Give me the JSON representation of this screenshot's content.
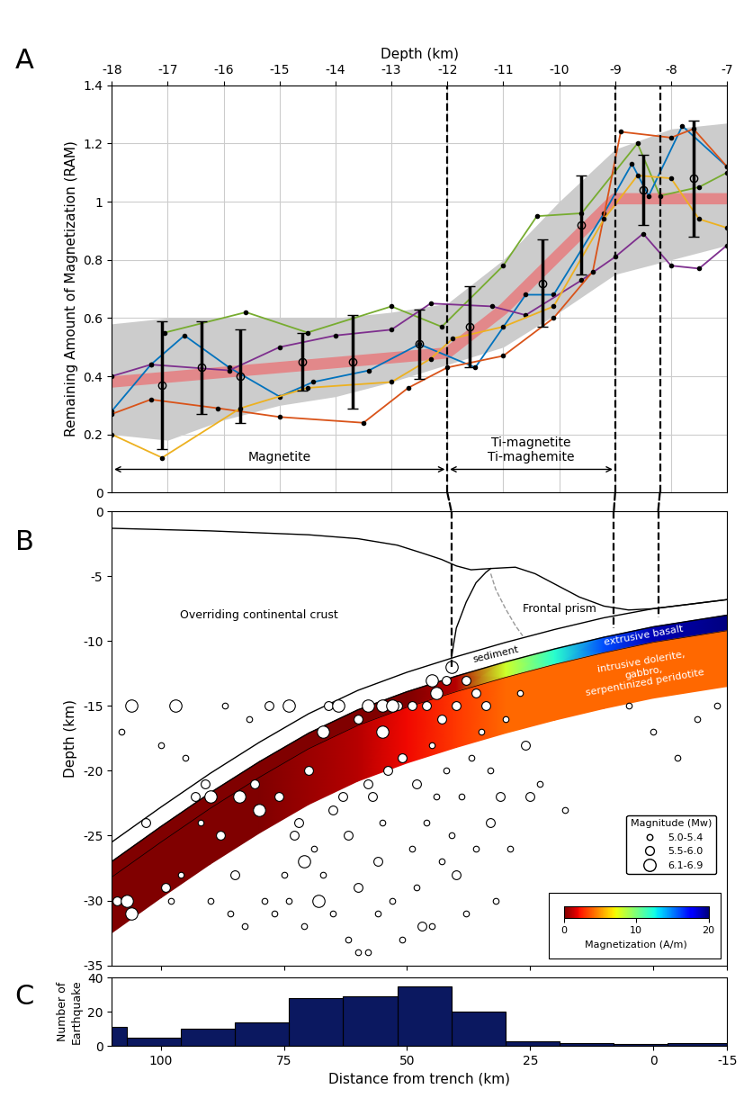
{
  "chart_data": [
    {
      "type": "line",
      "panel_label": "A",
      "xlabel": "Depth (km)",
      "ylabel": "Remaining Amount of Magnetization (RAM)",
      "xlim": [
        -18,
        -7
      ],
      "xticks": [
        -18,
        -17,
        -16,
        -15,
        -14,
        -13,
        -12,
        -11,
        -10,
        -9,
        -8,
        -7
      ],
      "ylim": [
        0,
        1.4
      ],
      "yticks": [
        0,
        0.2,
        0.4,
        0.6,
        0.8,
        1,
        1.2,
        1.4
      ],
      "grid": true,
      "series": [
        {
          "color": "#77ac30",
          "marker": "o",
          "x": [
            -17.05,
            -15.6,
            -14.5,
            -13.0,
            -12.1,
            -11.0,
            -10.4,
            -9.6,
            -8.6,
            -8.2,
            -7.5,
            -7.0
          ],
          "values": [
            0.55,
            0.62,
            0.55,
            0.64,
            0.57,
            0.78,
            0.95,
            0.96,
            1.2,
            1.02,
            1.05,
            1.1
          ]
        },
        {
          "color": "#0072bd",
          "marker": "o",
          "x": [
            -18,
            -17.3,
            -16.7,
            -15.9,
            -15.0,
            -14.4,
            -13.4,
            -12.5,
            -11.5,
            -10.6,
            -10.1,
            -9.2,
            -8.7,
            -8.4,
            -7.8,
            -7.0
          ],
          "values": [
            0.28,
            0.44,
            0.54,
            0.43,
            0.33,
            0.38,
            0.42,
            0.51,
            0.43,
            0.68,
            0.68,
            0.96,
            1.13,
            1.02,
            1.26,
            1.12
          ]
        },
        {
          "color": "#7e2f8e",
          "marker": "o",
          "x": [
            -18,
            -17.3,
            -15.9,
            -15.0,
            -14.0,
            -13.0,
            -12.3,
            -11.2,
            -10.6,
            -9.6,
            -9.0,
            -8.5,
            -8.0,
            -7.5,
            -7.0
          ],
          "values": [
            0.4,
            0.44,
            0.42,
            0.5,
            0.54,
            0.56,
            0.65,
            0.64,
            0.61,
            0.73,
            0.81,
            0.89,
            0.78,
            0.77,
            0.85
          ]
        },
        {
          "color": "#d95319",
          "marker": "o",
          "x": [
            -18,
            -17.3,
            -16.1,
            -15.0,
            -13.5,
            -12.7,
            -12.0,
            -11.0,
            -10.1,
            -9.4,
            -8.9,
            -8.0,
            -7.6,
            -7.0
          ],
          "values": [
            0.27,
            0.32,
            0.29,
            0.26,
            0.24,
            0.36,
            0.43,
            0.47,
            0.6,
            0.76,
            1.24,
            1.22,
            1.25,
            1.12
          ]
        },
        {
          "color": "#edb120",
          "marker": "o",
          "x": [
            -18,
            -17.1,
            -15.7,
            -14.5,
            -13.0,
            -12.3,
            -11.9,
            -11.0,
            -10.1,
            -9.2,
            -8.6,
            -8.0,
            -7.5,
            -7.0
          ],
          "values": [
            0.2,
            0.12,
            0.29,
            0.36,
            0.38,
            0.46,
            0.53,
            0.57,
            0.64,
            0.94,
            1.09,
            1.08,
            0.94,
            0.91
          ]
        }
      ],
      "trend": {
        "color": "#e8777a",
        "x": [
          -18,
          -12,
          -11,
          -10,
          -9,
          -7
        ],
        "values": [
          0.38,
          0.48,
          0.63,
          0.82,
          1.01,
          1.01
        ]
      },
      "band": {
        "color": "#cccccc",
        "x": [
          -18,
          -17,
          -16,
          -15,
          -14,
          -13,
          -12,
          -11,
          -10,
          -9,
          -8,
          -7
        ],
        "lower": [
          0.2,
          0.18,
          0.25,
          0.3,
          0.33,
          0.38,
          0.44,
          0.5,
          0.62,
          0.75,
          0.8,
          0.85
        ],
        "upper": [
          0.58,
          0.6,
          0.6,
          0.6,
          0.6,
          0.62,
          0.65,
          0.8,
          1.0,
          1.18,
          1.25,
          1.27
        ]
      },
      "means": {
        "x": [
          -17.1,
          -16.4,
          -15.7,
          -14.6,
          -13.7,
          -12.5,
          -11.6,
          -10.3,
          -9.6,
          -8.5,
          -7.6
        ],
        "values": [
          0.37,
          0.43,
          0.4,
          0.45,
          0.45,
          0.51,
          0.57,
          0.72,
          0.92,
          1.04,
          1.08
        ],
        "errors": [
          0.22,
          0.16,
          0.16,
          0.1,
          0.16,
          0.12,
          0.14,
          0.15,
          0.17,
          0.12,
          0.2
        ]
      },
      "phases": [
        {
          "text": "Magnetite",
          "from": -18,
          "to": -12,
          "y": 0.08
        },
        {
          "text": "Ti-magnetite\nTi-maghemite",
          "from": -12,
          "to": -9,
          "y": 0.08
        }
      ]
    },
    {
      "type": "scatter",
      "panel_label": "B",
      "ylabel": "Depth (km)",
      "xlim": [
        110,
        -15
      ],
      "xticks": [
        100,
        75,
        50,
        25,
        0,
        -15
      ],
      "ylim": [
        -35,
        0
      ],
      "yticks": [
        -35,
        -30,
        -25,
        -20,
        -15,
        -10,
        -5,
        0
      ],
      "tick_labels": "y",
      "legend": "lower right",
      "legend_title": "Magnitude (Mw)",
      "series": [
        {
          "name": "5.0-5.4",
          "x": [
            108,
            100,
            98,
            95,
            96,
            92,
            90,
            87,
            86,
            83,
            82,
            79,
            77,
            75,
            74,
            71,
            69,
            67,
            65,
            62,
            60,
            58,
            56,
            55,
            53,
            51,
            49,
            48,
            46,
            45,
            44,
            43,
            42,
            41,
            39,
            37,
            36,
            35,
            33,
            32,
            30,
            29,
            27,
            23,
            18,
            5,
            0,
            -5,
            -13,
            -9,
            45,
            38
          ],
          "values": [
            -17,
            -18,
            -30,
            -19,
            -28,
            -24,
            -30,
            -15,
            -31,
            -32,
            -16,
            -30,
            -31,
            -28,
            -30,
            -32,
            -26,
            -28,
            -31,
            -33,
            -34,
            -34,
            -31,
            -24,
            -30,
            -33,
            -26,
            -29,
            -24,
            -18,
            -22,
            -27,
            -20,
            -25,
            -22,
            -19,
            -26,
            -17,
            -20,
            -30,
            -16,
            -26,
            -14,
            -21,
            -23,
            -15,
            -17,
            -19,
            -15,
            -16,
            -32,
            -31
          ]
        },
        {
          "name": "5.5-6.0",
          "x": [
            109,
            103,
            99,
            93,
            91,
            88,
            85,
            81,
            78,
            76,
            73,
            72,
            70,
            66,
            65,
            63,
            62,
            60,
            60,
            58,
            57,
            56,
            54,
            52,
            51,
            49,
            48,
            46,
            43,
            42,
            40,
            38,
            36,
            34,
            31,
            33,
            47,
            40,
            25,
            26
          ],
          "values": [
            -30,
            -24,
            -29,
            -22,
            -21,
            -25,
            -28,
            -21,
            -15,
            -22,
            -25,
            -24,
            -20,
            -15,
            -23,
            -22,
            -25,
            -16,
            -29,
            -21,
            -22,
            -27,
            -20,
            -15,
            -19,
            -15,
            -21,
            -15,
            -16,
            -13,
            -15,
            -13,
            -14,
            -15,
            -22,
            -24,
            -32,
            -28,
            -22,
            -18
          ]
        },
        {
          "name": "6.1-6.9",
          "x": [
            106,
            97,
            74,
            64,
            55,
            45,
            41,
            53,
            84,
            90,
            80,
            71,
            67,
            107,
            106,
            68,
            55,
            58,
            44
          ],
          "values": [
            -15,
            -15,
            -15,
            -15,
            -15,
            -13,
            -12,
            -15,
            -22,
            -22,
            -23,
            -27,
            -17,
            -30,
            -31,
            -30,
            -17,
            -15,
            -14
          ]
        }
      ],
      "cross_section": {
        "x": [
          110,
          100,
          90,
          80,
          70,
          60,
          50,
          40,
          30,
          20,
          10,
          0,
          -15
        ],
        "sediment_top": [
          -25.5,
          -22.8,
          -20.2,
          -17.8,
          -15.6,
          -13.8,
          -12.4,
          -11.2,
          -10.1,
          -9.1,
          -8.2,
          -7.5,
          -6.8
        ],
        "slab_top": [
          -27.0,
          -24.3,
          -21.7,
          -19.3,
          -17.1,
          -15.3,
          -13.9,
          -12.7,
          -11.6,
          -10.6,
          -9.7,
          -8.9,
          -8.0
        ],
        "basalt_bottom": [
          -28.2,
          -25.5,
          -22.9,
          -20.5,
          -18.3,
          -16.5,
          -15.1,
          -13.9,
          -12.8,
          -11.8,
          -10.9,
          -10.1,
          -9.2
        ],
        "slab_bottom": [
          -32.5,
          -29.8,
          -27.2,
          -24.8,
          -22.6,
          -20.8,
          -19.4,
          -18.2,
          -17.1,
          -16.1,
          -15.2,
          -14.4,
          -13.5
        ],
        "upper_magnetization": [
          0,
          0,
          0,
          0,
          0,
          0,
          0,
          1,
          8,
          12,
          16,
          19,
          20
        ],
        "lower_magnetization": [
          0,
          0,
          0,
          0,
          0.5,
          1,
          2,
          3,
          4,
          4,
          4,
          4,
          4
        ],
        "surface": {
          "x": [
            110,
            90,
            70,
            60,
            52,
            47,
            43,
            40,
            37,
            33,
            28,
            24,
            20,
            15,
            10,
            5,
            0,
            -15
          ],
          "y": [
            -1.3,
            -1.5,
            -1.8,
            -2.1,
            -2.6,
            -3.2,
            -3.7,
            -4.2,
            -4.5,
            -4.4,
            -4.3,
            -4.8,
            -5.6,
            -6.6,
            -7.3,
            -7.6,
            -7.5,
            -6.8
          ]
        },
        "prism_back": {
          "x": [
            41,
            40,
            38,
            36,
            34,
            33
          ],
          "y": [
            -11.3,
            -9.0,
            -7.0,
            -5.5,
            -4.7,
            -4.4
          ]
        },
        "prism_inner": {
          "x": [
            33,
            32,
            30,
            28,
            26.5
          ],
          "y": [
            -4.8,
            -6.0,
            -7.5,
            -8.8,
            -9.6
          ]
        }
      },
      "colorbar": {
        "label": "Magnetization (A/m)",
        "range": [
          0,
          20
        ],
        "ticks": [
          0,
          10,
          20
        ]
      },
      "annotations": [
        {
          "text": "Overriding continental crust",
          "x": 80,
          "y": -8,
          "color": "black"
        },
        {
          "text": "Frontal prism",
          "x": 19,
          "y": -7.5,
          "color": "black"
        },
        {
          "text": "sediment",
          "x": 32,
          "y": -11.0,
          "color": "black"
        },
        {
          "text": "extrusive basalt",
          "x": 2,
          "y": -9.6,
          "color": "white"
        },
        {
          "text": "intrusive dolerite,\ngabbro,\nserpentinized peridotite",
          "x": 2,
          "y": -12.4,
          "color": "white"
        }
      ],
      "guides": [
        {
          "depth": -12,
          "distance": 41
        },
        {
          "depth": -9,
          "distance": 8
        },
        {
          "depth": -8.2,
          "distance": -1
        }
      ]
    },
    {
      "type": "histogram",
      "panel_label": "C",
      "xlabel": "Distance from trench (km)",
      "ylabel": "Number of\nEarthquake",
      "bins": [
        -15,
        -3,
        8,
        19,
        30,
        41,
        52,
        63,
        74,
        85,
        96,
        107,
        110
      ],
      "counts": [
        2,
        1,
        2,
        3,
        20,
        35,
        29,
        28,
        14,
        10,
        5,
        11
      ],
      "color": "#0b1860",
      "xlim": [
        110,
        -15
      ],
      "xticks": [
        100,
        75,
        50,
        25,
        0,
        -15
      ],
      "ylim": [
        0,
        40
      ],
      "yticks": [
        0,
        20,
        40
      ]
    }
  ]
}
